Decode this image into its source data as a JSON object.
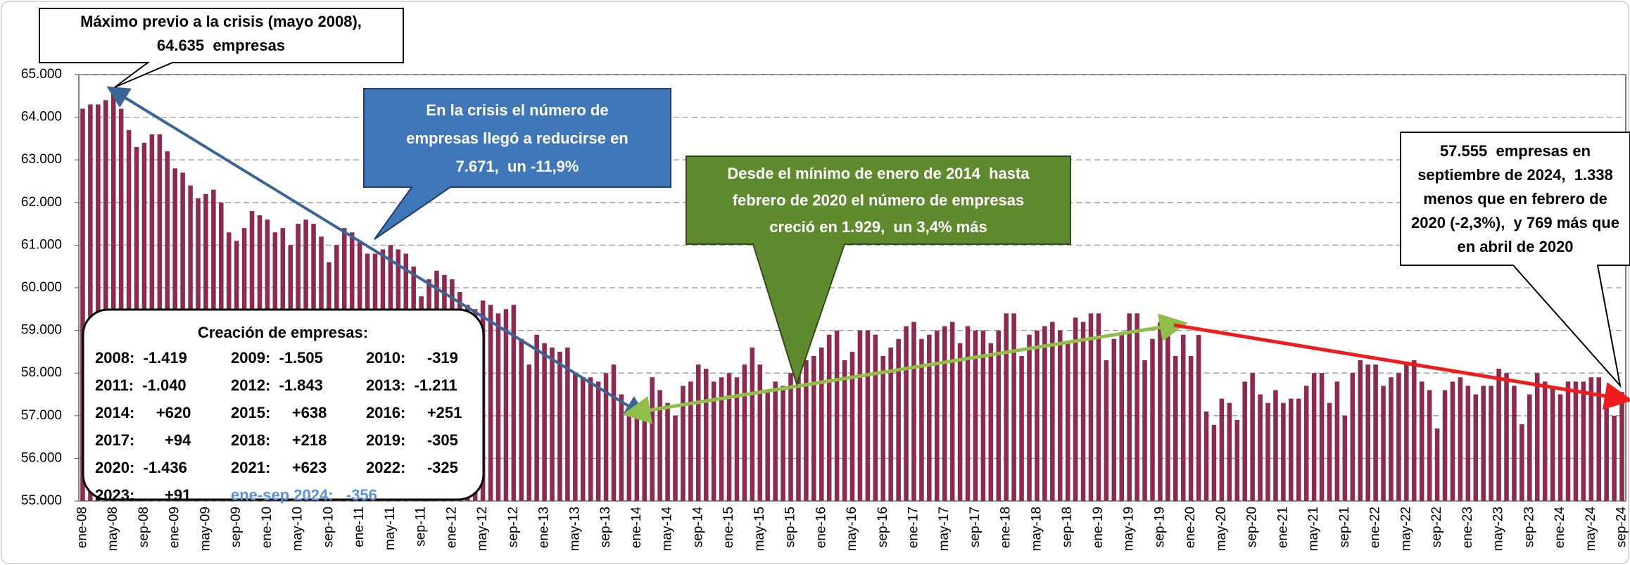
{
  "chart_data": {
    "type": "bar",
    "color": "#8e2a50",
    "grid": true,
    "ylim": [
      55000,
      65000
    ],
    "yticks": [
      {
        "value": 55000,
        "label": "55.000"
      },
      {
        "value": 56000,
        "label": "56.000"
      },
      {
        "value": 57000,
        "label": "57.000"
      },
      {
        "value": 58000,
        "label": "58.000"
      },
      {
        "value": 59000,
        "label": "59.000"
      },
      {
        "value": 60000,
        "label": "60.000"
      },
      {
        "value": 61000,
        "label": "61.000"
      },
      {
        "value": 62000,
        "label": "62.000"
      },
      {
        "value": 63000,
        "label": "63.000"
      },
      {
        "value": 64000,
        "label": "64.000"
      },
      {
        "value": 65000,
        "label": "65.000"
      }
    ],
    "categories": [
      "ene-08",
      null,
      null,
      null,
      "may-08",
      null,
      null,
      null,
      "sep-08",
      null,
      null,
      null,
      "ene-09",
      null,
      null,
      null,
      "may-09",
      null,
      null,
      null,
      "sep-09",
      null,
      null,
      null,
      "ene-10",
      null,
      null,
      null,
      "may-10",
      null,
      null,
      null,
      "sep-10",
      null,
      null,
      null,
      "ene-11",
      null,
      null,
      null,
      "may-11",
      null,
      null,
      null,
      "sep-11",
      null,
      null,
      null,
      "ene-12",
      null,
      null,
      null,
      "may-12",
      null,
      null,
      null,
      "sep-12",
      null,
      null,
      null,
      "ene-13",
      null,
      null,
      null,
      "may-13",
      null,
      null,
      null,
      "sep-13",
      null,
      null,
      null,
      "ene-14",
      null,
      null,
      null,
      "may-14",
      null,
      null,
      null,
      "sep-14",
      null,
      null,
      null,
      "ene-15",
      null,
      null,
      null,
      "may-15",
      null,
      null,
      null,
      "sep-15",
      null,
      null,
      null,
      "ene-16",
      null,
      null,
      null,
      "may-16",
      null,
      null,
      null,
      "sep-16",
      null,
      null,
      null,
      "ene-17",
      null,
      null,
      null,
      "may-17",
      null,
      null,
      null,
      "sep-17",
      null,
      null,
      null,
      "ene-18",
      null,
      null,
      null,
      "may-18",
      null,
      null,
      null,
      "sep-18",
      null,
      null,
      null,
      "ene-19",
      null,
      null,
      null,
      "may-19",
      null,
      null,
      null,
      "sep-19",
      null,
      null,
      null,
      "ene-20",
      null,
      null,
      null,
      "may-20",
      null,
      null,
      null,
      "sep-20",
      null,
      null,
      null,
      "ene-21",
      null,
      null,
      null,
      "may-21",
      null,
      null,
      null,
      "sep-21",
      null,
      null,
      null,
      "ene-22",
      null,
      null,
      null,
      "may-22",
      null,
      null,
      null,
      "sep-22",
      null,
      null,
      null,
      "ene-23",
      null,
      null,
      null,
      "may-23",
      null,
      null,
      null,
      "sep-23",
      null,
      null,
      null,
      "ene-24",
      null,
      null,
      null,
      "may-24",
      null,
      null,
      null,
      "sep-24"
    ],
    "values": [
      64200,
      64300,
      64300,
      64400,
      64635,
      64200,
      63700,
      63300,
      63400,
      63600,
      63600,
      63200,
      62800,
      62700,
      62400,
      62100,
      62200,
      62300,
      62000,
      61300,
      61100,
      61400,
      61800,
      61700,
      61600,
      61300,
      61400,
      61000,
      61500,
      61600,
      61500,
      61200,
      60600,
      61000,
      61400,
      61300,
      61100,
      60800,
      60800,
      60900,
      61000,
      60900,
      60800,
      60500,
      59800,
      60200,
      60400,
      60300,
      60200,
      59900,
      59600,
      59500,
      59700,
      59600,
      59400,
      59500,
      59600,
      58800,
      58200,
      58900,
      58700,
      58600,
      58500,
      58600,
      58000,
      57900,
      57900,
      57800,
      58000,
      58200,
      57500,
      57200,
      56964,
      57300,
      57900,
      57600,
      57300,
      57000,
      57700,
      57800,
      58200,
      58100,
      57800,
      57900,
      58000,
      57900,
      58200,
      58600,
      58200,
      57600,
      57800,
      57700,
      58000,
      58400,
      58300,
      58400,
      58600,
      58900,
      59000,
      58300,
      58500,
      59000,
      59000,
      58900,
      58400,
      58600,
      58800,
      59100,
      59200,
      58800,
      58900,
      59000,
      59100,
      59200,
      58700,
      59100,
      59000,
      59000,
      58700,
      59000,
      59400,
      59400,
      58400,
      58900,
      59000,
      59100,
      59200,
      59000,
      58700,
      59300,
      59200,
      59400,
      59400,
      58300,
      58800,
      58900,
      59400,
      59400,
      58300,
      58800,
      59200,
      59000,
      58400,
      58900,
      58400,
      58893,
      57100,
      56786,
      57400,
      57300,
      56900,
      57800,
      58000,
      57500,
      57300,
      57600,
      57300,
      57400,
      57400,
      57700,
      58000,
      58000,
      57300,
      57800,
      57000,
      58000,
      58300,
      58200,
      58200,
      57700,
      57900,
      58000,
      58200,
      58300,
      57800,
      57600,
      56700,
      57600,
      57800,
      57900,
      57700,
      57500,
      57700,
      57700,
      58100,
      58000,
      57700,
      56800,
      57500,
      58000,
      57800,
      57700,
      57500,
      57800,
      57800,
      57800,
      57900,
      57900,
      57500,
      57000,
      57555
    ],
    "callouts": {
      "max": [
        "Máximo previo a la crisis (mayo 2008),",
        "64.635  empresas"
      ],
      "crisis": [
        "En la crisis el número de",
        "empresas llegó a reducirse en",
        "7.671,  un -11,9%"
      ],
      "recovery": [
        "Desde el mínimo de enero de 2014  hasta",
        "febrero de 2020 el número de empresas",
        "creció en 1.929,  un 3,4% más"
      ],
      "current": [
        "57.555  empresas en",
        "septiembre de 2024,  1.338",
        "menos que en febrero de",
        "2020 (-2,3%),  y 769 más que",
        "en abril de 2020"
      ]
    },
    "creation": {
      "title": "Creación de empresas:",
      "rows": [
        [
          "2008:  -1.419",
          "2009:  -1.505",
          "2010:     -319"
        ],
        [
          "2011:  -1.040",
          "2012:  -1.843",
          "2013:  -1.211"
        ],
        [
          "2014:     +620",
          "2015:     +638",
          "2016:     +251"
        ],
        [
          "2017:       +94",
          "2018:     +218",
          "2019:     -305"
        ],
        [
          "2020:  -1.436",
          "2021:     +623",
          "2022:     -325"
        ],
        [
          "2023:       +91",
          "ene-sep 2024:   -356"
        ]
      ]
    }
  }
}
